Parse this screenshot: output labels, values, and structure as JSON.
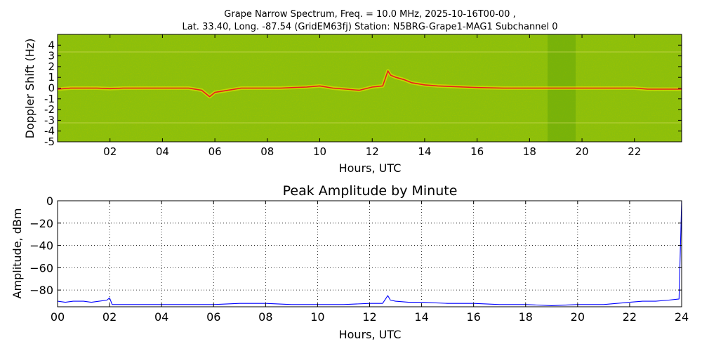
{
  "spectrogram": {
    "title_line1": "Grape Narrow Spectrum, Freq. = 10.0 MHz, 2025-10-16T00-00 ,",
    "title_line2": "Lat.  33.40, Long. -87.54 (GridEM63fj) Station: N5BRG-Grape1-MAG1 Subchannel 0",
    "xlabel": "Hours, UTC",
    "ylabel": "Doppler Shift (Hz)"
  },
  "amplitude": {
    "title": "Peak Amplitude by Minute",
    "xlabel": "Hours, UTC",
    "ylabel": "Amplitude, dBm"
  },
  "colors": {
    "spectrogram_background": "#8cbf0c",
    "spectrogram_trace": "#f2e600",
    "spectrogram_peak": "#e8201c",
    "amplitude_line": "#0000ff",
    "grid": "#000000"
  },
  "chart_data": [
    {
      "type": "heatmap",
      "title": "Grape Narrow Spectrum, Freq. = 10.0 MHz, 2025-10-16T00-00 , Lat.  33.40, Long. -87.54 (GridEM63fj) Station: N5BRG-Grape1-MAG1 Subchannel 0",
      "xlabel": "Hours, UTC",
      "ylabel": "Doppler Shift (Hz)",
      "xlim": [
        0,
        23.8
      ],
      "ylim": [
        -5,
        5
      ],
      "x_ticks": [
        "02",
        "04",
        "06",
        "08",
        "10",
        "12",
        "14",
        "16",
        "18",
        "20",
        "22"
      ],
      "x_tick_values": [
        2,
        4,
        6,
        8,
        10,
        12,
        14,
        16,
        18,
        20,
        22
      ],
      "y_ticks": [
        "4",
        "3",
        "2",
        "1",
        "0",
        "-1",
        "-2",
        "-3",
        "-4",
        "-5"
      ],
      "y_tick_values": [
        4,
        3,
        2,
        1,
        0,
        -1,
        -2,
        -3,
        -4,
        -5
      ],
      "grid": false,
      "doppler_trace": {
        "x": [
          0.0,
          0.5,
          1.0,
          1.5,
          2.0,
          2.5,
          3.0,
          3.5,
          4.0,
          4.5,
          5.0,
          5.5,
          5.8,
          6.0,
          6.5,
          7.0,
          7.5,
          8.0,
          8.5,
          9.0,
          9.5,
          10.0,
          10.5,
          11.0,
          11.5,
          12.0,
          12.4,
          12.6,
          12.7,
          12.9,
          13.2,
          13.5,
          14.0,
          14.5,
          15.0,
          15.5,
          16.0,
          17.0,
          18.0,
          19.0,
          20.0,
          21.0,
          22.0,
          22.5,
          23.0,
          23.8
        ],
        "y": [
          -0.1,
          0.0,
          0.0,
          0.0,
          -0.05,
          0.0,
          0.0,
          0.0,
          0.0,
          0.0,
          0.0,
          -0.2,
          -0.8,
          -0.4,
          -0.2,
          0.0,
          0.0,
          0.0,
          0.0,
          0.05,
          0.1,
          0.2,
          0.0,
          -0.1,
          -0.2,
          0.1,
          0.2,
          1.6,
          1.2,
          1.0,
          0.8,
          0.5,
          0.3,
          0.2,
          0.15,
          0.1,
          0.05,
          0.0,
          0.0,
          0.0,
          0.0,
          0.0,
          0.0,
          -0.1,
          -0.1,
          -0.1
        ]
      }
    },
    {
      "type": "line",
      "title": "Peak Amplitude by Minute",
      "xlabel": "Hours, UTC",
      "ylabel": "Amplitude, dBm",
      "xlim": [
        0,
        24
      ],
      "ylim": [
        -95,
        0
      ],
      "x_ticks": [
        "00",
        "02",
        "04",
        "06",
        "08",
        "10",
        "12",
        "14",
        "16",
        "18",
        "20",
        "22",
        "24"
      ],
      "x_tick_values": [
        0,
        2,
        4,
        6,
        8,
        10,
        12,
        14,
        16,
        18,
        20,
        22,
        24
      ],
      "y_ticks": [
        "0",
        "−20",
        "−40",
        "−60",
        "−80"
      ],
      "y_tick_values": [
        0,
        -20,
        -40,
        -60,
        -80
      ],
      "grid": true,
      "series": [
        {
          "x": [
            0.0,
            0.3,
            0.6,
            1.0,
            1.3,
            1.6,
            1.9,
            2.0,
            2.1,
            2.5,
            3.0,
            4.0,
            5.0,
            6.0,
            7.0,
            8.0,
            9.0,
            10.0,
            11.0,
            12.0,
            12.5,
            12.7,
            12.8,
            13.0,
            13.5,
            14.0,
            15.0,
            16.0,
            17.0,
            18.0,
            19.0,
            20.0,
            21.0,
            22.0,
            22.5,
            23.0,
            23.5,
            23.9,
            24.0
          ],
          "y": [
            -90,
            -91,
            -90,
            -90,
            -91,
            -90,
            -89,
            -87,
            -93,
            -93,
            -93,
            -93,
            -93,
            -93,
            -92,
            -92,
            -93,
            -93,
            -93,
            -92,
            -92,
            -85,
            -89,
            -90,
            -91,
            -91,
            -92,
            -92,
            -93,
            -93,
            -94,
            -93,
            -93,
            -91,
            -90,
            -90,
            -89,
            -88,
            0
          ]
        }
      ]
    }
  ]
}
